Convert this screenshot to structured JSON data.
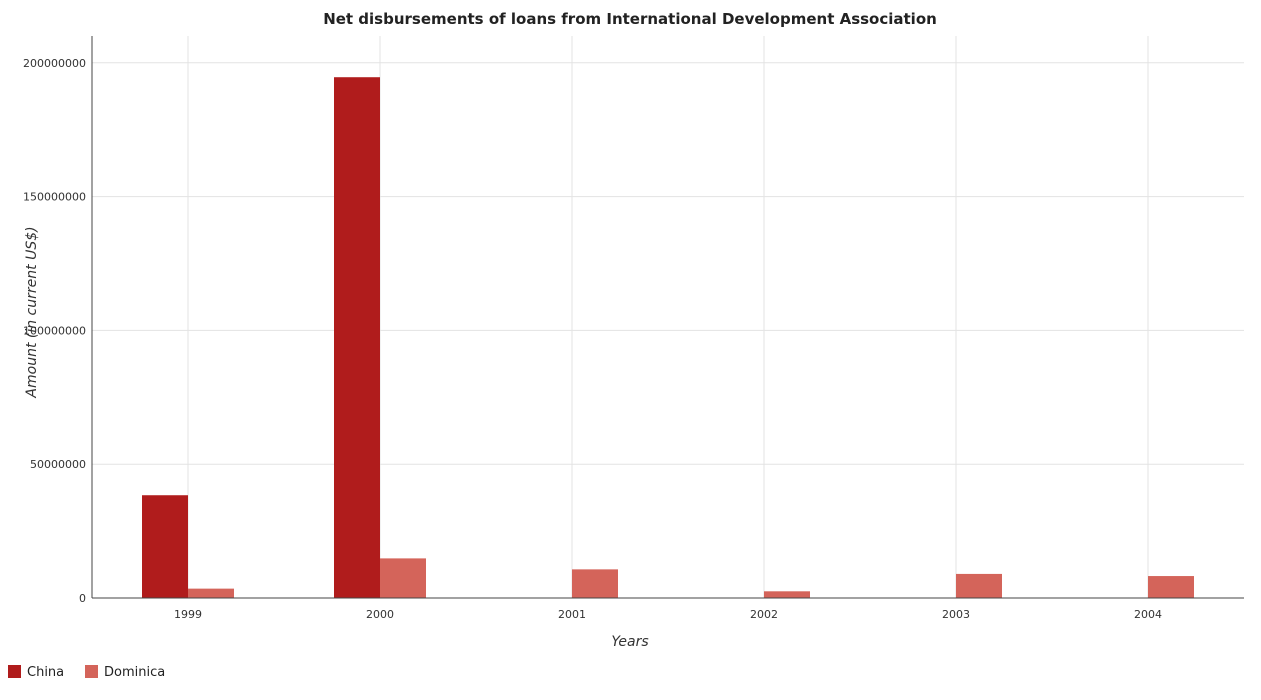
{
  "chart_data": {
    "type": "bar",
    "title": "Net disbursements of loans from International Development Association",
    "xlabel": "Years",
    "ylabel": "Amount (in current US$)",
    "categories": [
      "1999",
      "2000",
      "2001",
      "2002",
      "2003",
      "2004"
    ],
    "series": [
      {
        "name": "China",
        "color": "#b01c1c",
        "values": [
          38400000,
          194600000,
          0,
          0,
          0,
          0
        ]
      },
      {
        "name": "Dominica",
        "color": "#d4645a",
        "values": [
          3500000,
          14800000,
          10700000,
          2500000,
          9000000,
          8200000
        ]
      }
    ],
    "ylim": [
      0,
      210000000
    ],
    "yticks": [
      0,
      50000000,
      100000000,
      150000000,
      200000000
    ],
    "ytick_labels": [
      "0",
      "50000000",
      "100000000",
      "150000000",
      "200000000"
    ],
    "grid": true,
    "legend_position": "bottom-left"
  }
}
